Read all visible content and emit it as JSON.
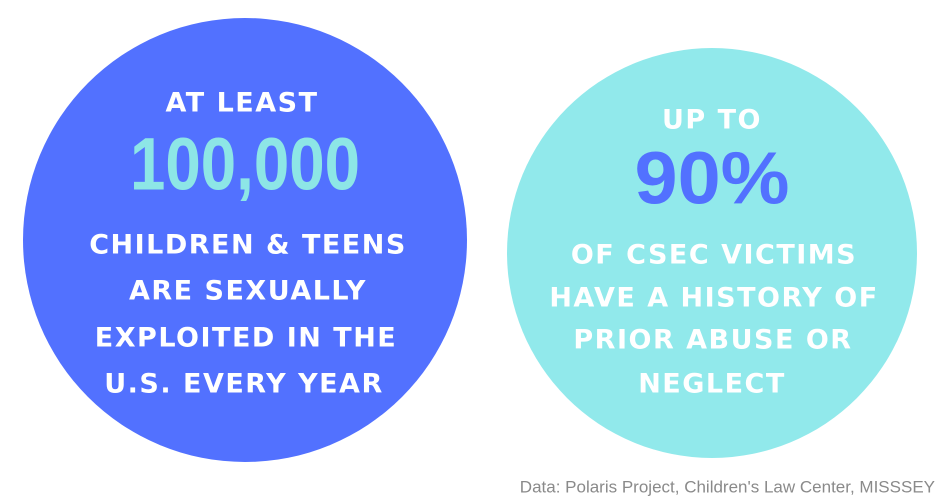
{
  "circles": [
    {
      "intro": "AT LEAST",
      "figure": "100,000",
      "lines": [
        "CHILDREN & TEENS",
        "ARE SEXUALLY",
        "EXPLOITED IN THE",
        "U.S. EVERY YEAR"
      ]
    },
    {
      "intro": "UP TO",
      "figure": "90%",
      "lines": [
        "OF CSEC VICTIMS",
        "HAVE A HISTORY OF",
        "PRIOR ABUSE OR",
        "NEGLECT"
      ]
    }
  ],
  "source": "Data: Polaris Project, Children's Law Center, MISSSEY"
}
